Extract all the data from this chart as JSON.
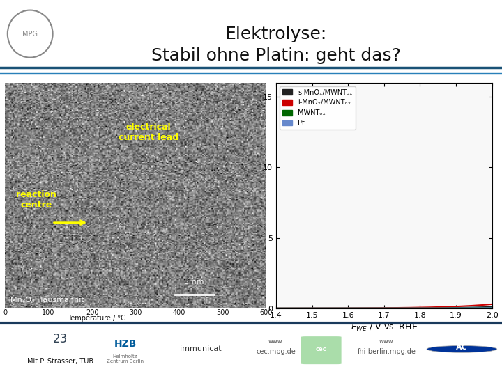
{
  "title_line1": "Elektrolyse:",
  "title_line2": "Stabil ohne Platin: geht das?",
  "title_fontsize": 18,
  "bg_color": "#ffffff",
  "header_line_color1": "#1a5276",
  "header_line_color2": "#2980b9",
  "footer_line_color": "#1a3a5c",
  "slide_number": "23",
  "footer_text": "Mit P. Strasser, TUB",
  "xlabel_bottom": "Temperature / °C",
  "xticks_bottom": [
    0,
    100,
    200,
    300,
    400,
    500,
    600
  ],
  "graph_xlabel": "E_WE / V vs. RHE",
  "graph_ylabel": "",
  "graph_yticks": [
    0,
    5,
    10,
    15
  ],
  "graph_xlim": [
    1.4,
    2.0
  ],
  "graph_ylim": [
    0,
    16
  ],
  "legend_labels": [
    "s-MnOₓ/MWNTₒₓ",
    "i-MnOₓ/MWNTₒₓ",
    "MWNTₒₓ",
    "Pt"
  ],
  "legend_colors": [
    "#222222",
    "#cc0000",
    "#006600",
    "#6688cc"
  ],
  "text_electrical": "electrical\ncurrent lead",
  "text_reaction": "reaction\ncentre",
  "text_yellow_color": "#ffff00",
  "img_text_bottom_left": "Mn₃O₄ Hausmannit",
  "img_text_scale": "5 nm",
  "footer_logos": [
    "www.\ncec.mpg.de",
    "www.\nfhi-berlin.mpg.de"
  ],
  "logo_HZB_color": "#005b9a",
  "logo_AC_color": "#003399"
}
